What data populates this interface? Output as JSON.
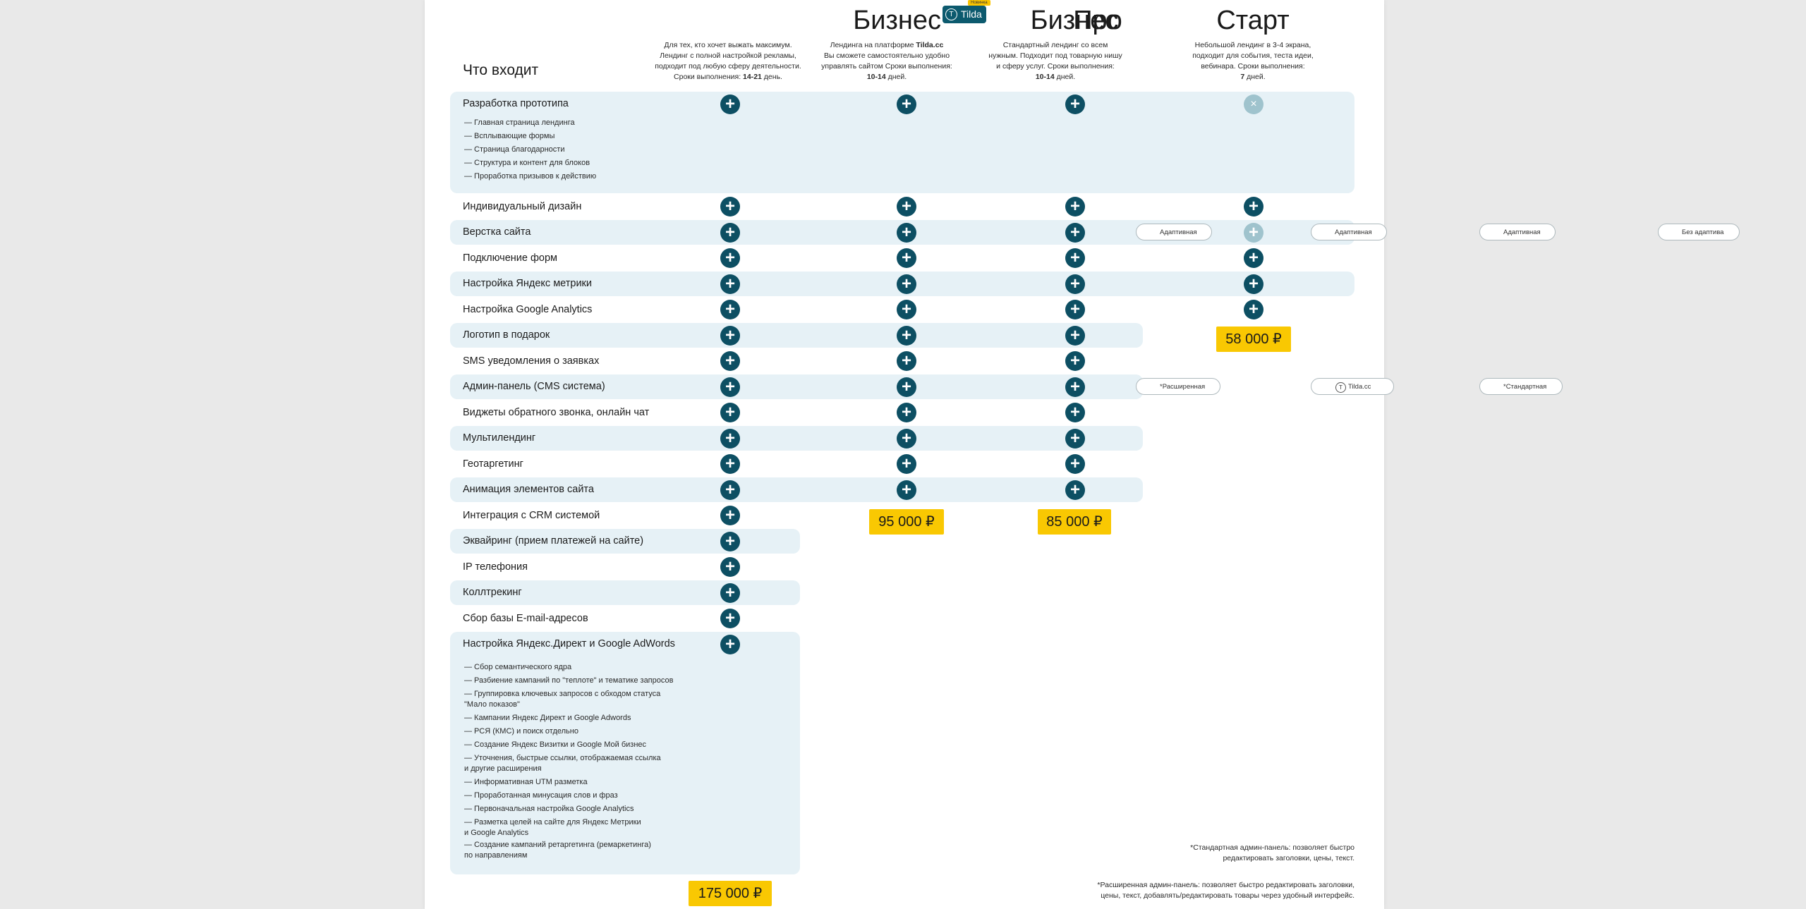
{
  "header": {
    "included_title": "Что входит",
    "plans": [
      {
        "title": "Про",
        "desc_lines": [
          "Для тех, кто хочет выжать максимум.",
          "Лендинг с полной настройкой рекламы,",
          "подходит под любую сферу деятельности.",
          "Сроки выполнения: "
        ],
        "duration": "14-21",
        "duration_suffix": " день."
      },
      {
        "title": "Бизнес",
        "desc_lines": [
          "Лендинга на платформе ",
          "Вы сможете самостоятельно удобно",
          "управлять сайтом Сроки выполнения:",
          ""
        ],
        "platform": "Tilda.cc",
        "duration": "10-14",
        "duration_suffix": " дней."
      },
      {
        "title": "Бизнес",
        "desc_lines": [
          "Стандартный лендинг со всем",
          "нужным. Подходит под товарную нишу",
          "и сферу услуг. Сроки выполнения:",
          ""
        ],
        "duration": "10-14",
        "duration_suffix": " дней."
      },
      {
        "title": "Старт",
        "desc_lines": [
          "Небольшой лендинг в 3-4 экрана,",
          "подходит для события, теста идеи,",
          "вебинара. Сроки выполнения:",
          ""
        ],
        "duration": "7",
        "duration_suffix": " дней."
      }
    ],
    "tilda_badge": "Tilda",
    "tilda_logo": "T",
    "new_tag": "Новинка"
  },
  "rows": [
    {
      "label": "Разработка прототипа",
      "sub": [
        "— Главная страница лендинга",
        "— Всплывающие формы",
        "— Страница благодарности",
        "— Структура и контент для блоков",
        "— Проработка призывов к действию"
      ]
    },
    {
      "label": "Индивидуальный дизайн"
    },
    {
      "label": "Верстка сайта"
    },
    {
      "label": "Подключение форм"
    },
    {
      "label": "Настройка Яндекс метрики"
    },
    {
      "label": "Настройка Google Analytics"
    },
    {
      "label": "Логотип в подарок"
    },
    {
      "label": "SMS уведомления о заявках"
    },
    {
      "label": "Админ-панель (CMS система)"
    },
    {
      "label": "Виджеты обратного звонка, онлайн чат"
    },
    {
      "label": "Мультилендинг"
    },
    {
      "label": "Геотаргетинг"
    },
    {
      "label": "Анимация элементов сайта"
    },
    {
      "label": "Интеграция с CRM системой"
    },
    {
      "label": "Эквайринг (прием платежей на сайте)"
    },
    {
      "label": "IP телефония"
    },
    {
      "label": "Коллтрекинг"
    },
    {
      "label": "Сбор базы E-mail-адресов"
    },
    {
      "label": "Настройка Яндекс.Директ и Google AdWords",
      "sub": [
        "— Сбор семантического ядра",
        "— Разбиение кампаний по \"теплоте\" и тематике запросов",
        "— Группировка ключевых запросов с обходом статуса\n   \"Мало показов\"",
        "— Кампании Яндекс Директ и Google Adwords",
        "— РСЯ (КМС) и поиск отдельно",
        "— Создание Яндекс Визитки и Google Мой бизнес",
        "— Уточнения, быстрые ссылки, отображаемая ссылка\n   и другие расширения",
        "— Информативная UTM разметка",
        "— Проработанная минусация слов и фраз",
        "— Первоначальная настройка Google Analytics",
        "— Разметка целей на сайте для Яндекс Метрики\n   и Google Analytics",
        "— Создание кампаний ретаргетинга (ремаркетинга)\n   по направлениям"
      ]
    }
  ],
  "tags": {
    "adaptive": "Адаптивная",
    "no_adaptive": "Без адаптива",
    "extended": "*Расширенная",
    "tilda": "Tilda.cc",
    "standard": "*Стандартная"
  },
  "prices": {
    "pro": "175 000 ₽",
    "business_tilda": "95 000 ₽",
    "business": "85 000 ₽",
    "start": "58 000 ₽"
  },
  "footnotes": {
    "standard": [
      "*Стандартная админ-панель: позволяет быстро",
      "редактировать заголовки, цены, текст."
    ],
    "extended": [
      "*Расширенная админ-панель: позволяет быстро редактировать заголовки,",
      "цены, текст, добавлять/редактировать товары через удобный интерфейс."
    ]
  },
  "icons": {
    "plus": "+",
    "close": "×"
  },
  "colors": {
    "accent": "#0d4f63",
    "muted_icon": "#9fc3cd",
    "band": "#e6f1f6",
    "price_bg": "#f9c802"
  }
}
